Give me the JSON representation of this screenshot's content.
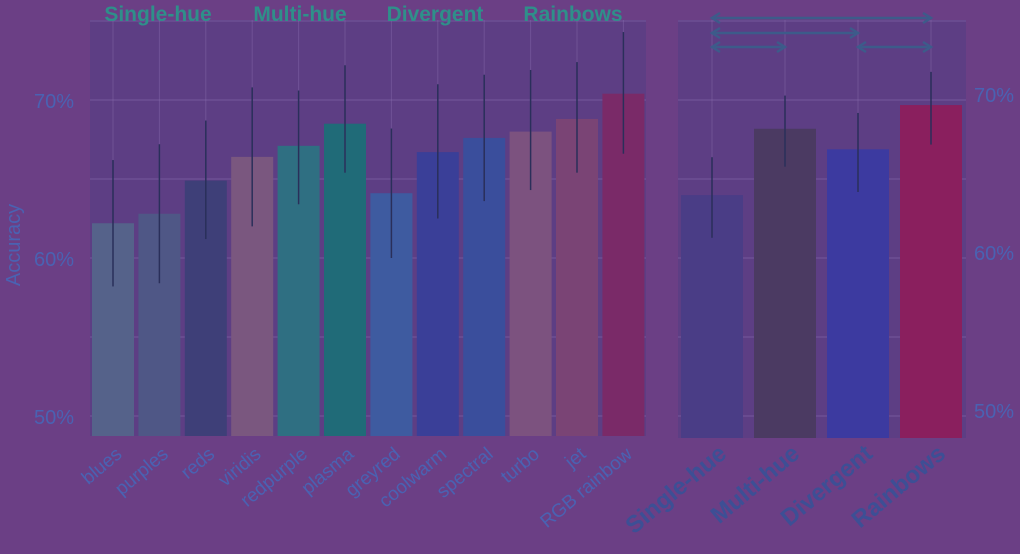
{
  "chart_data": [
    {
      "type": "bar",
      "group_labels": [
        "Single-hue",
        "Multi-hue",
        "Divergent",
        "Rainbows"
      ],
      "ylabel": "Accuracy",
      "ylim": [
        0.49,
        0.76
      ],
      "yticks": [
        0.5,
        0.6,
        0.7
      ],
      "ytick_labels": [
        "50%",
        "60%",
        "70%"
      ],
      "grid": true,
      "categories": [
        "blues",
        "purples",
        "reds",
        "viridis",
        "redpurple",
        "plasma",
        "greyred",
        "coolwarm",
        "spectral",
        "turbo",
        "jet",
        "RGB rainbow"
      ],
      "values": [
        0.622,
        0.628,
        0.649,
        0.664,
        0.671,
        0.685,
        0.641,
        0.667,
        0.676,
        0.68,
        0.688,
        0.704
      ],
      "error_low": [
        0.582,
        0.584,
        0.612,
        0.62,
        0.634,
        0.654,
        0.6,
        0.625,
        0.636,
        0.643,
        0.654,
        0.666
      ],
      "error_high": [
        0.662,
        0.672,
        0.687,
        0.708,
        0.706,
        0.722,
        0.682,
        0.71,
        0.716,
        0.719,
        0.724,
        0.743
      ],
      "colors": [
        "#55628a",
        "#4f5786",
        "#3e3f78",
        "#7a577f",
        "#2f6f82",
        "#206b78",
        "#3e5ba0",
        "#3a3f98",
        "#3a4e9c",
        "#7c527f",
        "#7a4475",
        "#7a2a68"
      ]
    },
    {
      "type": "bar",
      "ylabel": "",
      "ylim": [
        0.49,
        0.76
      ],
      "yticks": [
        0.5,
        0.6,
        0.7
      ],
      "ytick_labels": [
        "50%",
        "60%",
        "70%"
      ],
      "grid": true,
      "categories": [
        "Single-hue",
        "Multi-hue",
        "Divergent",
        "Rainbows"
      ],
      "values": [
        0.636,
        0.678,
        0.665,
        0.693
      ],
      "error_low": [
        0.609,
        0.654,
        0.638,
        0.668
      ],
      "error_high": [
        0.66,
        0.699,
        0.688,
        0.714
      ],
      "colors": [
        "#4a3d86",
        "#4b3a62",
        "#3c3aa0",
        "#8a1f5e"
      ],
      "annotations": [
        "significance brackets"
      ]
    }
  ]
}
